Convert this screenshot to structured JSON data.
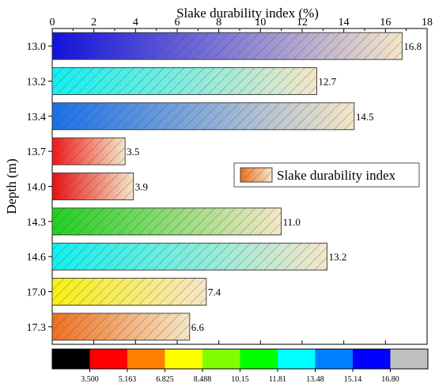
{
  "chart_data": {
    "type": "bar",
    "orientation": "horizontal",
    "title": "Slake durability index (%)",
    "xlabel": "Slake durability index (%)",
    "ylabel": "Depth (m)",
    "xlim": [
      0,
      18
    ],
    "x_ticks": [
      "0",
      "2",
      "4",
      "6",
      "8",
      "10",
      "12",
      "14",
      "16",
      "18"
    ],
    "x_axis_position": "top",
    "categories": [
      "13.0",
      "13.2",
      "13.4",
      "13.7",
      "14.0",
      "14.3",
      "14.6",
      "17.0",
      "17.3"
    ],
    "series": [
      {
        "name": "Slake durability index",
        "values": [
          16.8,
          12.7,
          14.5,
          3.5,
          3.9,
          11.0,
          13.2,
          7.4,
          6.6
        ],
        "labels": [
          "16.8",
          "12.7",
          "14.5",
          "3.5",
          "3.9",
          "11.0",
          "13.2",
          "7.4",
          "6.6"
        ],
        "start_colors": [
          "#1010e0",
          "#10f0f0",
          "#1a70e8",
          "#f01818",
          "#e81010",
          "#20d020",
          "#10f0f0",
          "#f8f010",
          "#f07020"
        ],
        "end_color": "#f5e6c8",
        "pattern": "diagonal-hatch"
      }
    ],
    "legend": {
      "label": "Slake durability index",
      "placement": "right-middle"
    },
    "color_scale": {
      "colors": [
        "#000000",
        "#ff0000",
        "#ff7f00",
        "#ffff00",
        "#80ff00",
        "#00ff00",
        "#00ffff",
        "#0080ff",
        "#0000ff",
        "#c0c0c0"
      ],
      "labels": [
        "3.500",
        "5.163",
        "6.825",
        "8.488",
        "10.15",
        "11.81",
        "13.48",
        "15.14",
        "16.80"
      ]
    },
    "grid": false
  }
}
